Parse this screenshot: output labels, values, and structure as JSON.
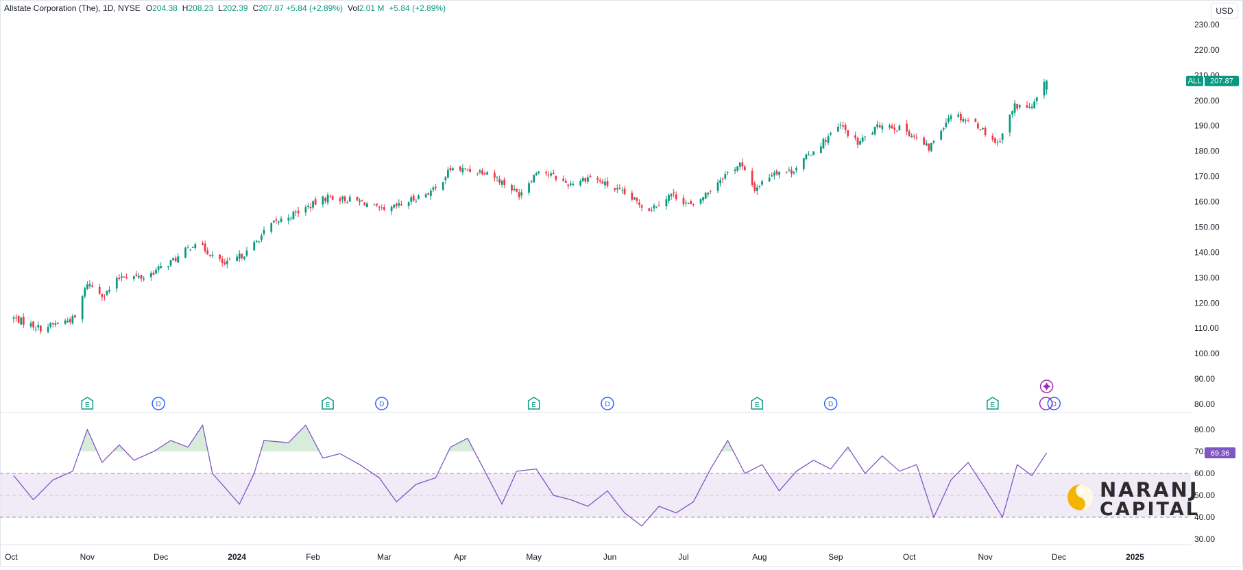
{
  "header": {
    "symbol_name": "Allstate Corporation (The), 1D, NYSE",
    "open_label": "O",
    "open": "204.38",
    "high_label": "H",
    "high": "208.23",
    "low_label": "L",
    "low": "202.39",
    "close_label": "C",
    "close": "207.87 +5.84 (+2.89%)",
    "vol_label": "Vol",
    "vol": "2.01 M",
    "vol_change": "+5.84 (+2.89%)"
  },
  "currency_button": "USD",
  "price_tag": {
    "ticker": "ALL",
    "value": "207.87"
  },
  "rsi_tag": "69.36",
  "watermark": {
    "line1": "NARANJ",
    "line2": "CAPITAL"
  },
  "colors": {
    "up": "#089981",
    "down": "#f23645",
    "rsi": "#7e57c2",
    "rsi_band": "#ede7f6",
    "events_blue": "#2962ff",
    "earnings_green": "#089981",
    "axis_text": "#131722",
    "grid": "#f0f3fa"
  },
  "event_markers": [
    {
      "type": "E",
      "x_date": "2023-11-01"
    },
    {
      "type": "D",
      "x_date": "2023-11-30"
    },
    {
      "type": "E",
      "x_date": "2024-02-07"
    },
    {
      "type": "D",
      "x_date": "2024-02-29"
    },
    {
      "type": "E",
      "x_date": "2024-05-01"
    },
    {
      "type": "D",
      "x_date": "2024-05-31"
    },
    {
      "type": "E",
      "x_date": "2024-07-31"
    },
    {
      "type": "D",
      "x_date": "2024-08-30"
    },
    {
      "type": "E",
      "x_date": "2024-11-04"
    },
    {
      "type": "D",
      "x_date": "2024-11-29"
    }
  ],
  "chart_data": [
    {
      "type": "candlestick",
      "title": "Allstate Corporation (The), 1D, NYSE",
      "ylabel": "USD",
      "yticks": [
        "230.00",
        "220.00",
        "210.00",
        "200.00",
        "190.00",
        "180.00",
        "170.00",
        "160.00",
        "150.00",
        "140.00",
        "130.00",
        "120.00",
        "110.00",
        "100.00",
        "90.00",
        "80.00"
      ],
      "ylim": [
        78,
        234
      ],
      "xticks": [
        "Oct",
        "Nov",
        "Dec",
        "2024",
        "Feb",
        "Mar",
        "Apr",
        "May",
        "Jun",
        "Jul",
        "Aug",
        "Sep",
        "Oct",
        "Nov",
        "Dec",
        "2025"
      ],
      "anchors": [
        {
          "date": "2023-10-02",
          "close": 114
        },
        {
          "date": "2023-10-13",
          "close": 110
        },
        {
          "date": "2023-10-27",
          "close": 114
        },
        {
          "date": "2023-11-01",
          "close": 128
        },
        {
          "date": "2023-11-08",
          "close": 123
        },
        {
          "date": "2023-11-15",
          "close": 131
        },
        {
          "date": "2023-11-24",
          "close": 130
        },
        {
          "date": "2023-12-08",
          "close": 138
        },
        {
          "date": "2023-12-15",
          "close": 144
        },
        {
          "date": "2023-12-27",
          "close": 135
        },
        {
          "date": "2024-01-05",
          "close": 140
        },
        {
          "date": "2024-01-15",
          "close": 151
        },
        {
          "date": "2024-01-30",
          "close": 158
        },
        {
          "date": "2024-02-07",
          "close": 162
        },
        {
          "date": "2024-02-21",
          "close": 160
        },
        {
          "date": "2024-03-01",
          "close": 156
        },
        {
          "date": "2024-03-22",
          "close": 165
        },
        {
          "date": "2024-03-28",
          "close": 173
        },
        {
          "date": "2024-04-12",
          "close": 172
        },
        {
          "date": "2024-04-25",
          "close": 163
        },
        {
          "date": "2024-05-03",
          "close": 173
        },
        {
          "date": "2024-05-15",
          "close": 167
        },
        {
          "date": "2024-05-24",
          "close": 170
        },
        {
          "date": "2024-06-05",
          "close": 164
        },
        {
          "date": "2024-06-17",
          "close": 157
        },
        {
          "date": "2024-06-26",
          "close": 163
        },
        {
          "date": "2024-07-05",
          "close": 158
        },
        {
          "date": "2024-07-17",
          "close": 170
        },
        {
          "date": "2024-07-24",
          "close": 175
        },
        {
          "date": "2024-07-30",
          "close": 165
        },
        {
          "date": "2024-08-07",
          "close": 172
        },
        {
          "date": "2024-08-14",
          "close": 172
        },
        {
          "date": "2024-08-26",
          "close": 183
        },
        {
          "date": "2024-09-03",
          "close": 190
        },
        {
          "date": "2024-09-10",
          "close": 183
        },
        {
          "date": "2024-09-20",
          "close": 191
        },
        {
          "date": "2024-09-30",
          "close": 188
        },
        {
          "date": "2024-10-09",
          "close": 181
        },
        {
          "date": "2024-10-18",
          "close": 195
        },
        {
          "date": "2024-10-28",
          "close": 191
        },
        {
          "date": "2024-11-06",
          "close": 183
        },
        {
          "date": "2024-11-13",
          "close": 198
        },
        {
          "date": "2024-11-20",
          "close": 197
        },
        {
          "date": "2024-11-26",
          "close": 207.87
        }
      ]
    },
    {
      "type": "line",
      "title": "RSI",
      "yticks": [
        "80.00",
        "70.00",
        "60.00",
        "50.00",
        "40.00",
        "30.00"
      ],
      "ylim": [
        26,
        85
      ],
      "band": [
        40,
        60
      ],
      "midline": 50,
      "x": [
        "2023-10-02",
        "2023-10-10",
        "2023-10-18",
        "2023-10-26",
        "2023-11-01",
        "2023-11-07",
        "2023-11-14",
        "2023-11-20",
        "2023-11-28",
        "2023-12-05",
        "2023-12-12",
        "2023-12-18",
        "2023-12-22",
        "2024-01-02",
        "2024-01-08",
        "2024-01-12",
        "2024-01-22",
        "2024-01-29",
        "2024-02-05",
        "2024-02-12",
        "2024-02-20",
        "2024-02-28",
        "2024-03-06",
        "2024-03-14",
        "2024-03-22",
        "2024-03-28",
        "2024-04-04",
        "2024-04-11",
        "2024-04-18",
        "2024-04-24",
        "2024-05-02",
        "2024-05-09",
        "2024-05-16",
        "2024-05-23",
        "2024-05-31",
        "2024-06-07",
        "2024-06-14",
        "2024-06-21",
        "2024-06-28",
        "2024-07-05",
        "2024-07-12",
        "2024-07-19",
        "2024-07-26",
        "2024-08-02",
        "2024-08-09",
        "2024-08-16",
        "2024-08-23",
        "2024-08-30",
        "2024-09-06",
        "2024-09-13",
        "2024-09-20",
        "2024-09-27",
        "2024-10-04",
        "2024-10-11",
        "2024-10-18",
        "2024-10-25",
        "2024-11-01",
        "2024-11-08",
        "2024-11-14",
        "2024-11-20",
        "2024-11-26"
      ],
      "values": [
        59,
        48,
        57,
        61,
        80,
        65,
        73,
        66,
        70,
        75,
        72,
        82,
        60,
        46,
        60,
        75,
        74,
        82,
        67,
        69,
        64,
        58,
        47,
        55,
        58,
        72,
        76,
        61,
        46,
        61,
        62,
        50,
        48,
        45,
        52,
        42,
        36,
        45,
        42,
        47,
        62,
        75,
        60,
        64,
        52,
        61,
        66,
        62,
        72,
        60,
        68,
        61,
        64,
        40,
        57,
        65,
        53,
        40,
        64,
        59,
        69.36
      ]
    }
  ]
}
